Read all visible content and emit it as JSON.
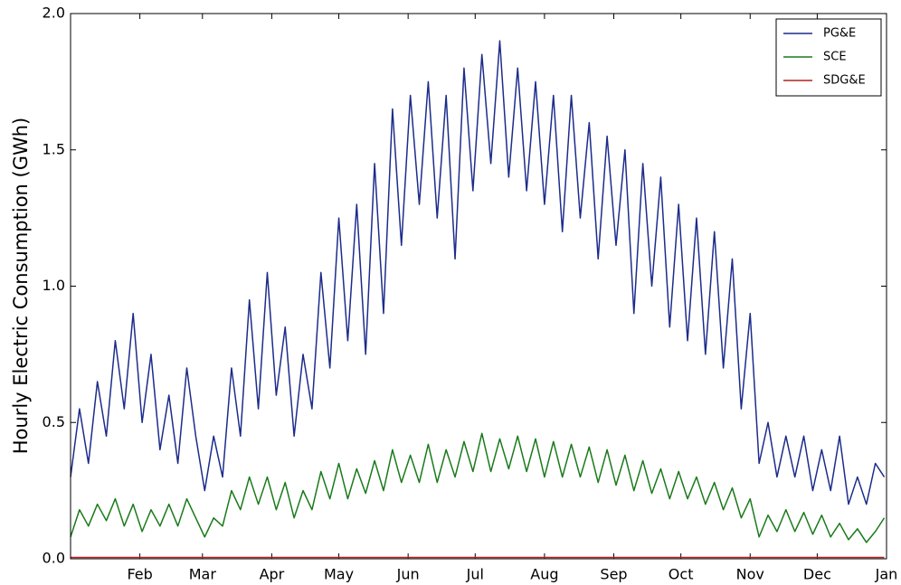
{
  "chart_data": {
    "type": "line",
    "ylabel": "Hourly Electric Consumption (GWh)",
    "x": [
      0,
      4,
      8,
      12,
      16,
      20,
      24,
      28,
      32,
      36,
      40,
      44,
      48,
      52,
      56,
      60,
      64,
      68,
      72,
      76,
      80,
      84,
      88,
      92,
      96,
      100,
      104,
      108,
      112,
      116,
      120,
      124,
      128,
      132,
      136,
      140,
      144,
      148,
      152,
      156,
      160,
      164,
      168,
      172,
      176,
      180,
      184,
      188,
      192,
      196,
      200,
      204,
      208,
      212,
      216,
      220,
      224,
      228,
      232,
      236,
      240,
      244,
      248,
      252,
      256,
      260,
      264,
      268,
      272,
      276,
      280,
      284,
      288,
      292,
      296,
      300,
      304,
      308,
      312,
      316,
      320,
      324,
      328,
      332,
      336,
      340,
      344,
      348,
      352,
      356,
      360,
      364
    ],
    "series": [
      {
        "name": "PG&E",
        "color": "#1c2c8a",
        "values": [
          0.3,
          0.55,
          0.35,
          0.65,
          0.45,
          0.8,
          0.55,
          0.9,
          0.5,
          0.75,
          0.4,
          0.6,
          0.35,
          0.7,
          0.45,
          0.25,
          0.45,
          0.3,
          0.7,
          0.45,
          0.95,
          0.55,
          1.05,
          0.6,
          0.85,
          0.45,
          0.75,
          0.55,
          1.05,
          0.7,
          1.25,
          0.8,
          1.3,
          0.75,
          1.45,
          0.9,
          1.65,
          1.15,
          1.7,
          1.3,
          1.75,
          1.25,
          1.7,
          1.1,
          1.8,
          1.35,
          1.85,
          1.45,
          1.9,
          1.4,
          1.8,
          1.35,
          1.75,
          1.3,
          1.7,
          1.2,
          1.7,
          1.25,
          1.6,
          1.1,
          1.55,
          1.15,
          1.5,
          0.9,
          1.45,
          1.0,
          1.4,
          0.85,
          1.3,
          0.8,
          1.25,
          0.75,
          1.2,
          0.7,
          1.1,
          0.55,
          0.9,
          0.35,
          0.5,
          0.3,
          0.45,
          0.3,
          0.45,
          0.25,
          0.4,
          0.25,
          0.45,
          0.2,
          0.3,
          0.2,
          0.35,
          0.3
        ]
      },
      {
        "name": "SCE",
        "color": "#1a7a1a",
        "values": [
          0.08,
          0.18,
          0.12,
          0.2,
          0.14,
          0.22,
          0.12,
          0.2,
          0.1,
          0.18,
          0.12,
          0.2,
          0.12,
          0.22,
          0.15,
          0.08,
          0.15,
          0.12,
          0.25,
          0.18,
          0.3,
          0.2,
          0.3,
          0.18,
          0.28,
          0.15,
          0.25,
          0.18,
          0.32,
          0.22,
          0.35,
          0.22,
          0.33,
          0.24,
          0.36,
          0.25,
          0.4,
          0.28,
          0.38,
          0.28,
          0.42,
          0.28,
          0.4,
          0.3,
          0.43,
          0.32,
          0.46,
          0.32,
          0.44,
          0.33,
          0.45,
          0.32,
          0.44,
          0.3,
          0.43,
          0.3,
          0.42,
          0.3,
          0.41,
          0.28,
          0.4,
          0.27,
          0.38,
          0.25,
          0.36,
          0.24,
          0.33,
          0.22,
          0.32,
          0.22,
          0.3,
          0.2,
          0.28,
          0.18,
          0.26,
          0.15,
          0.22,
          0.08,
          0.16,
          0.1,
          0.18,
          0.1,
          0.17,
          0.09,
          0.16,
          0.08,
          0.13,
          0.07,
          0.11,
          0.06,
          0.1,
          0.15
        ]
      },
      {
        "name": "SDG&E",
        "color": "#b22222",
        "values": [
          0.005,
          0.005,
          0.005,
          0.005,
          0.005,
          0.005,
          0.005,
          0.005,
          0.005,
          0.005,
          0.005,
          0.005,
          0.005,
          0.005,
          0.005,
          0.005,
          0.005,
          0.005,
          0.005,
          0.005,
          0.005,
          0.005,
          0.005,
          0.005,
          0.005,
          0.005,
          0.005,
          0.005,
          0.005,
          0.005,
          0.005,
          0.005,
          0.005,
          0.005,
          0.005,
          0.005,
          0.005,
          0.005,
          0.005,
          0.005,
          0.005,
          0.005,
          0.005,
          0.005,
          0.005,
          0.005,
          0.005,
          0.005,
          0.005,
          0.005,
          0.005,
          0.005,
          0.005,
          0.005,
          0.005,
          0.005,
          0.005,
          0.005,
          0.005,
          0.005,
          0.005,
          0.005,
          0.005,
          0.005,
          0.005,
          0.005,
          0.005,
          0.005,
          0.005,
          0.005,
          0.005,
          0.005,
          0.005,
          0.005,
          0.005,
          0.005,
          0.005,
          0.005,
          0.005,
          0.005,
          0.005,
          0.005,
          0.005,
          0.005,
          0.005,
          0.005,
          0.005,
          0.005,
          0.005,
          0.005,
          0.005,
          0.005
        ]
      }
    ],
    "xlim": [
      0,
      365
    ],
    "xticks": [
      {
        "value": 31,
        "label": "Feb"
      },
      {
        "value": 59,
        "label": "Mar"
      },
      {
        "value": 90,
        "label": "Apr"
      },
      {
        "value": 120,
        "label": "May"
      },
      {
        "value": 151,
        "label": "Jun"
      },
      {
        "value": 181,
        "label": "Jul"
      },
      {
        "value": 212,
        "label": "Aug"
      },
      {
        "value": 243,
        "label": "Sep"
      },
      {
        "value": 273,
        "label": "Oct"
      },
      {
        "value": 304,
        "label": "Nov"
      },
      {
        "value": 334,
        "label": "Dec"
      },
      {
        "value": 365,
        "label": "Jan"
      }
    ],
    "ylim": [
      0,
      2
    ],
    "yticks": [
      {
        "value": 0,
        "label": "0.0"
      },
      {
        "value": 0.5,
        "label": "0.5"
      },
      {
        "value": 1,
        "label": "1.0"
      },
      {
        "value": 1.5,
        "label": "1.5"
      },
      {
        "value": 2,
        "label": "2.0"
      }
    ],
    "grid": false,
    "legend": "upper right"
  }
}
